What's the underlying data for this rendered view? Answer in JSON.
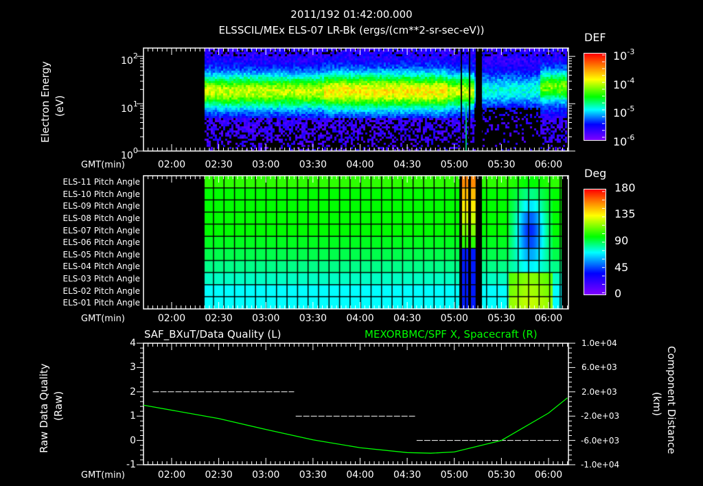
{
  "header": {
    "timestamp": "2011/192 01:42:00.000",
    "title": "ELSSCIL/MEx ELS-07 LR-Bk  (ergs/(cm**2-sr-sec-eV))"
  },
  "time_axis": {
    "label": "GMT(min)",
    "ticks": [
      "02:00",
      "02:30",
      "03:00",
      "03:30",
      "04:00",
      "04:30",
      "05:00",
      "05:30",
      "06:00"
    ]
  },
  "panel_spectrogram": {
    "ylabel_line1": "Electron Energy",
    "ylabel_line2": "(eV)",
    "yticks": [
      {
        "base": "10",
        "exp": "2"
      },
      {
        "base": "10",
        "exp": "1"
      },
      {
        "base": "10",
        "exp": "0"
      }
    ],
    "colorbar": {
      "title": "DEF",
      "ticks": [
        {
          "base": "10",
          "exp": "-3"
        },
        {
          "base": "10",
          "exp": "-4"
        },
        {
          "base": "10",
          "exp": "-5"
        },
        {
          "base": "10",
          "exp": "-6"
        }
      ]
    }
  },
  "panel_pitch": {
    "rows": [
      "ELS-11 Pitch Angle",
      "ELS-10 Pitch Angle",
      "ELS-09 Pitch Angle",
      "ELS-08 Pitch Angle",
      "ELS-07 Pitch Angle",
      "ELS-06 Pitch Angle",
      "ELS-05 Pitch Angle",
      "ELS-04 Pitch Angle",
      "ELS-03 Pitch Angle",
      "ELS-02 Pitch Angle",
      "ELS-01 Pitch Angle"
    ],
    "colorbar": {
      "title": "Deg",
      "ticks": [
        "180",
        "135",
        "90",
        "45",
        "0"
      ]
    }
  },
  "panel_quality": {
    "left_title": "SAF_BXuT/Data Quality (L)",
    "right_title": "MEXORBMC/SPF X, Spacecraft (R)",
    "right_title_color": "#00ff00",
    "ylabel_left_line1": "Raw Data Quality",
    "ylabel_left_line2": "(Raw)",
    "yticks_left": [
      "4",
      "3",
      "2",
      "1",
      "0",
      "-1"
    ],
    "ylabel_right_line1": "Component Distance",
    "ylabel_right_line2": "(km)",
    "yticks_right": [
      "1.0e+04",
      "6.0e+03",
      "2.0e+03",
      "-2.0e+03",
      "-6.0e+03",
      "-1.0e+04"
    ]
  },
  "chart_data": [
    {
      "type": "heatmap",
      "title": "ELSSCIL/MEx ELS-07 LR-Bk (ergs/(cm**2-sr-sec-eV))",
      "subtitle": "2011/192 01:42:00.000",
      "xlabel": "GMT(min)",
      "ylabel": "Electron Energy (eV)",
      "yscale": "log",
      "ylim": [
        1,
        150
      ],
      "x_ticks": [
        "02:00",
        "02:30",
        "03:00",
        "03:30",
        "04:00",
        "04:30",
        "05:00",
        "05:30",
        "06:00"
      ],
      "data_start": "02:20",
      "data_end": "06:12",
      "features": "Peak DEF ~1e-4 band centered near 15-20 eV from 02:20 to 05:05; data gaps near 05:05-05:17; weak flux 05:17-05:50; recovered band ~10-40 eV after 05:50",
      "colorbar": {
        "label": "DEF",
        "scale": "log",
        "range": [
          1e-06,
          0.001
        ]
      }
    },
    {
      "type": "heatmap",
      "title": "Pitch Angle",
      "xlabel": "GMT(min)",
      "rows": [
        "ELS-11",
        "ELS-10",
        "ELS-09",
        "ELS-08",
        "ELS-07",
        "ELS-06",
        "ELS-05",
        "ELS-04",
        "ELS-03",
        "ELS-02",
        "ELS-01"
      ],
      "x_ticks": [
        "02:00",
        "02:30",
        "03:00",
        "03:30",
        "04:00",
        "04:30",
        "05:00",
        "05:30",
        "06:00"
      ],
      "data_start": "02:20",
      "data_end": "06:12",
      "row_values_deg_typical": [
        95,
        90,
        90,
        90,
        90,
        85,
        80,
        75,
        65,
        55,
        55
      ],
      "features": "Rotating pitch angle near 05:05-05:15 (upper rows ~150 deg, lower rows ~20 deg); blue minimum (~20 deg) centered rows ELS-08/07 near 05:50-06:00",
      "colorbar": {
        "label": "Deg",
        "range": [
          0,
          180
        ],
        "ticks": [
          0,
          45,
          90,
          135,
          180
        ]
      }
    },
    {
      "type": "line",
      "title": "SAF_BXuT/Data Quality (L) / MEXORBMC/SPF X, Spacecraft (R)",
      "xlabel": "GMT(min)",
      "x_ticks": [
        "02:00",
        "02:30",
        "03:00",
        "03:30",
        "04:00",
        "04:30",
        "05:00",
        "05:30",
        "06:00"
      ],
      "series": [
        {
          "name": "SAF_BXuT/Data Quality (L)",
          "axis": "left",
          "color": "#ffffff",
          "style": "dashed-step",
          "x": [
            "01:48",
            "03:18",
            "03:19",
            "04:35",
            "04:36",
            "06:08"
          ],
          "values": [
            2,
            2,
            1,
            1,
            0,
            0
          ]
        },
        {
          "name": "MEXORBMC/SPF X, Spacecraft (R)",
          "axis": "right",
          "color": "#00ff00",
          "x": [
            "01:42",
            "02:30",
            "03:00",
            "03:30",
            "04:00",
            "04:30",
            "04:45",
            "05:00",
            "05:30",
            "06:00",
            "06:12"
          ],
          "values": [
            -200,
            -2400,
            -4200,
            -5900,
            -7200,
            -8000,
            -8100,
            -7900,
            -6000,
            -1500,
            1000
          ]
        }
      ],
      "ylim_left": [
        -1,
        4
      ],
      "ylim_right": [
        -10000,
        10000
      ],
      "ylabel_left": "Raw Data Quality (Raw)",
      "ylabel_right": "Component Distance (km)"
    }
  ]
}
